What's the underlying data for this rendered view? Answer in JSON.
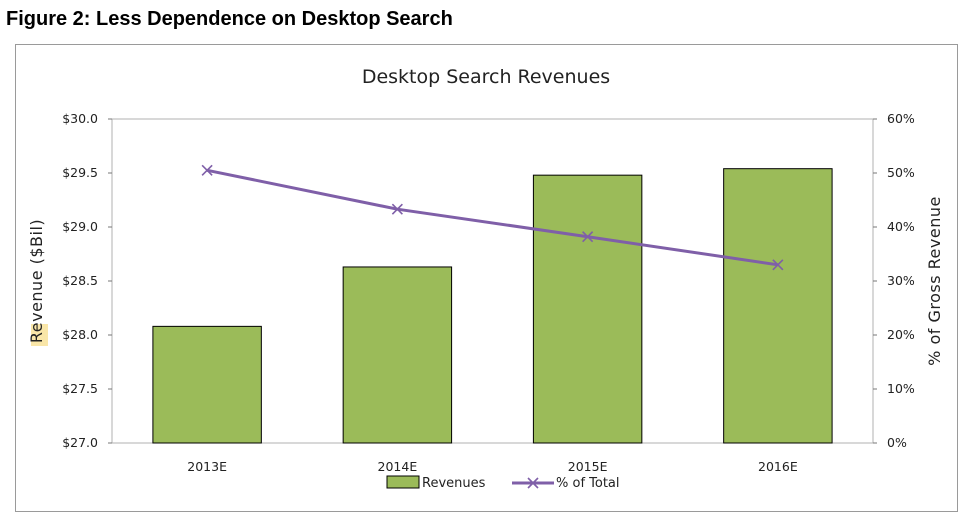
{
  "figure_title": "Figure 2: Less Dependence on Desktop Search",
  "colors": {
    "bar_fill": "#9BBB59",
    "bar_stroke": "#000000",
    "line": "#7F5FA8",
    "grid": "#cfcfcf",
    "axis_label_highlight": "#F9E6A8"
  },
  "chart_data": {
    "type": "bar",
    "title": "Desktop Search Revenues",
    "categories": [
      "2013E",
      "2014E",
      "2015E",
      "2016E"
    ],
    "ylabel": "Revenue ($Bil)",
    "ylim": [
      27.0,
      30.0
    ],
    "y_ticks": [
      "$27.0",
      "$27.5",
      "$28.0",
      "$28.5",
      "$29.0",
      "$29.5",
      "$30.0"
    ],
    "y2label": "% of Gross Revenue",
    "y2lim": [
      0,
      60
    ],
    "y2_ticks": [
      "0%",
      "10%",
      "20%",
      "30%",
      "40%",
      "50%",
      "60%"
    ],
    "grid": false,
    "legend_position": "bottom",
    "series": [
      {
        "name": "Revenues",
        "type": "bar",
        "axis": "left",
        "values": [
          28.08,
          28.63,
          29.48,
          29.54
        ]
      },
      {
        "name": "% of Total",
        "type": "line",
        "axis": "right",
        "marker": "x",
        "values": [
          50.5,
          43.3,
          38.2,
          33.0
        ]
      }
    ]
  }
}
